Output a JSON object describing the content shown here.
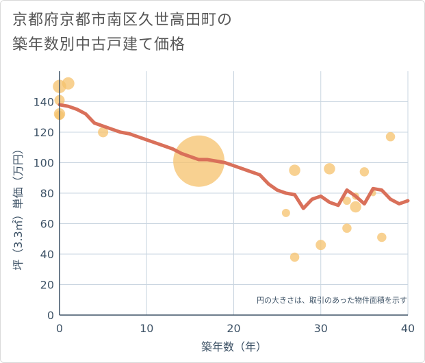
{
  "title": "京都府京都市南区久世高田町の\n築年数別中古戸建て価格",
  "chart_data": {
    "type": "scatter",
    "title": "京都府京都市南区久世高田町の築年数別中古戸建て価格",
    "xlabel": "築年数（年）",
    "ylabel": "坪（3.3㎡）単価（万円）",
    "xlim": [
      0,
      40
    ],
    "ylim": [
      0,
      160
    ],
    "xticks": [
      0,
      10,
      20,
      30,
      40
    ],
    "yticks": [
      0,
      20,
      40,
      60,
      80,
      100,
      120,
      140
    ],
    "grid": true,
    "note": "円の大きさは、取引のあった物件面積を示す",
    "colors": {
      "bubble": "#f5c16c",
      "line": "#d9705a",
      "grid": "#c9d5e0",
      "text": "#3d5266"
    },
    "points": [
      {
        "x": 0,
        "y": 150,
        "size": 1.3
      },
      {
        "x": 0,
        "y": 141,
        "size": 1.0
      },
      {
        "x": 0,
        "y": 132,
        "size": 1.1
      },
      {
        "x": 0,
        "y": 131,
        "size": 0.9
      },
      {
        "x": 1,
        "y": 152,
        "size": 1.2
      },
      {
        "x": 5,
        "y": 120,
        "size": 1.0
      },
      {
        "x": 16,
        "y": 101,
        "size": 5.0
      },
      {
        "x": 26,
        "y": 67,
        "size": 0.8
      },
      {
        "x": 27,
        "y": 95,
        "size": 1.1
      },
      {
        "x": 27,
        "y": 38,
        "size": 0.9
      },
      {
        "x": 30,
        "y": 46,
        "size": 1.0
      },
      {
        "x": 31,
        "y": 96,
        "size": 1.1
      },
      {
        "x": 33,
        "y": 75,
        "size": 0.8
      },
      {
        "x": 33,
        "y": 57,
        "size": 0.9
      },
      {
        "x": 34,
        "y": 71,
        "size": 1.1
      },
      {
        "x": 34,
        "y": 78,
        "size": 0.7
      },
      {
        "x": 35,
        "y": 94,
        "size": 0.9
      },
      {
        "x": 36,
        "y": 80,
        "size": 0.6
      },
      {
        "x": 37,
        "y": 51,
        "size": 0.9
      },
      {
        "x": 38,
        "y": 117,
        "size": 0.9
      }
    ],
    "trend": {
      "x": [
        0,
        1,
        2,
        3,
        4,
        5,
        6,
        7,
        8,
        9,
        10,
        11,
        12,
        13,
        14,
        15,
        16,
        17,
        18,
        19,
        20,
        21,
        22,
        23,
        24,
        25,
        26,
        27,
        28,
        29,
        30,
        31,
        32,
        33,
        34,
        35,
        36,
        37,
        38,
        39,
        40
      ],
      "y": [
        138,
        137,
        135,
        132,
        126,
        124,
        122,
        120,
        119,
        117,
        115,
        113,
        111,
        109,
        106,
        104,
        102,
        102,
        101,
        100,
        98,
        96,
        94,
        92,
        86,
        82,
        80,
        79,
        70,
        76,
        78,
        74,
        72,
        82,
        78,
        73,
        83,
        82,
        76,
        73,
        75
      ]
    }
  }
}
